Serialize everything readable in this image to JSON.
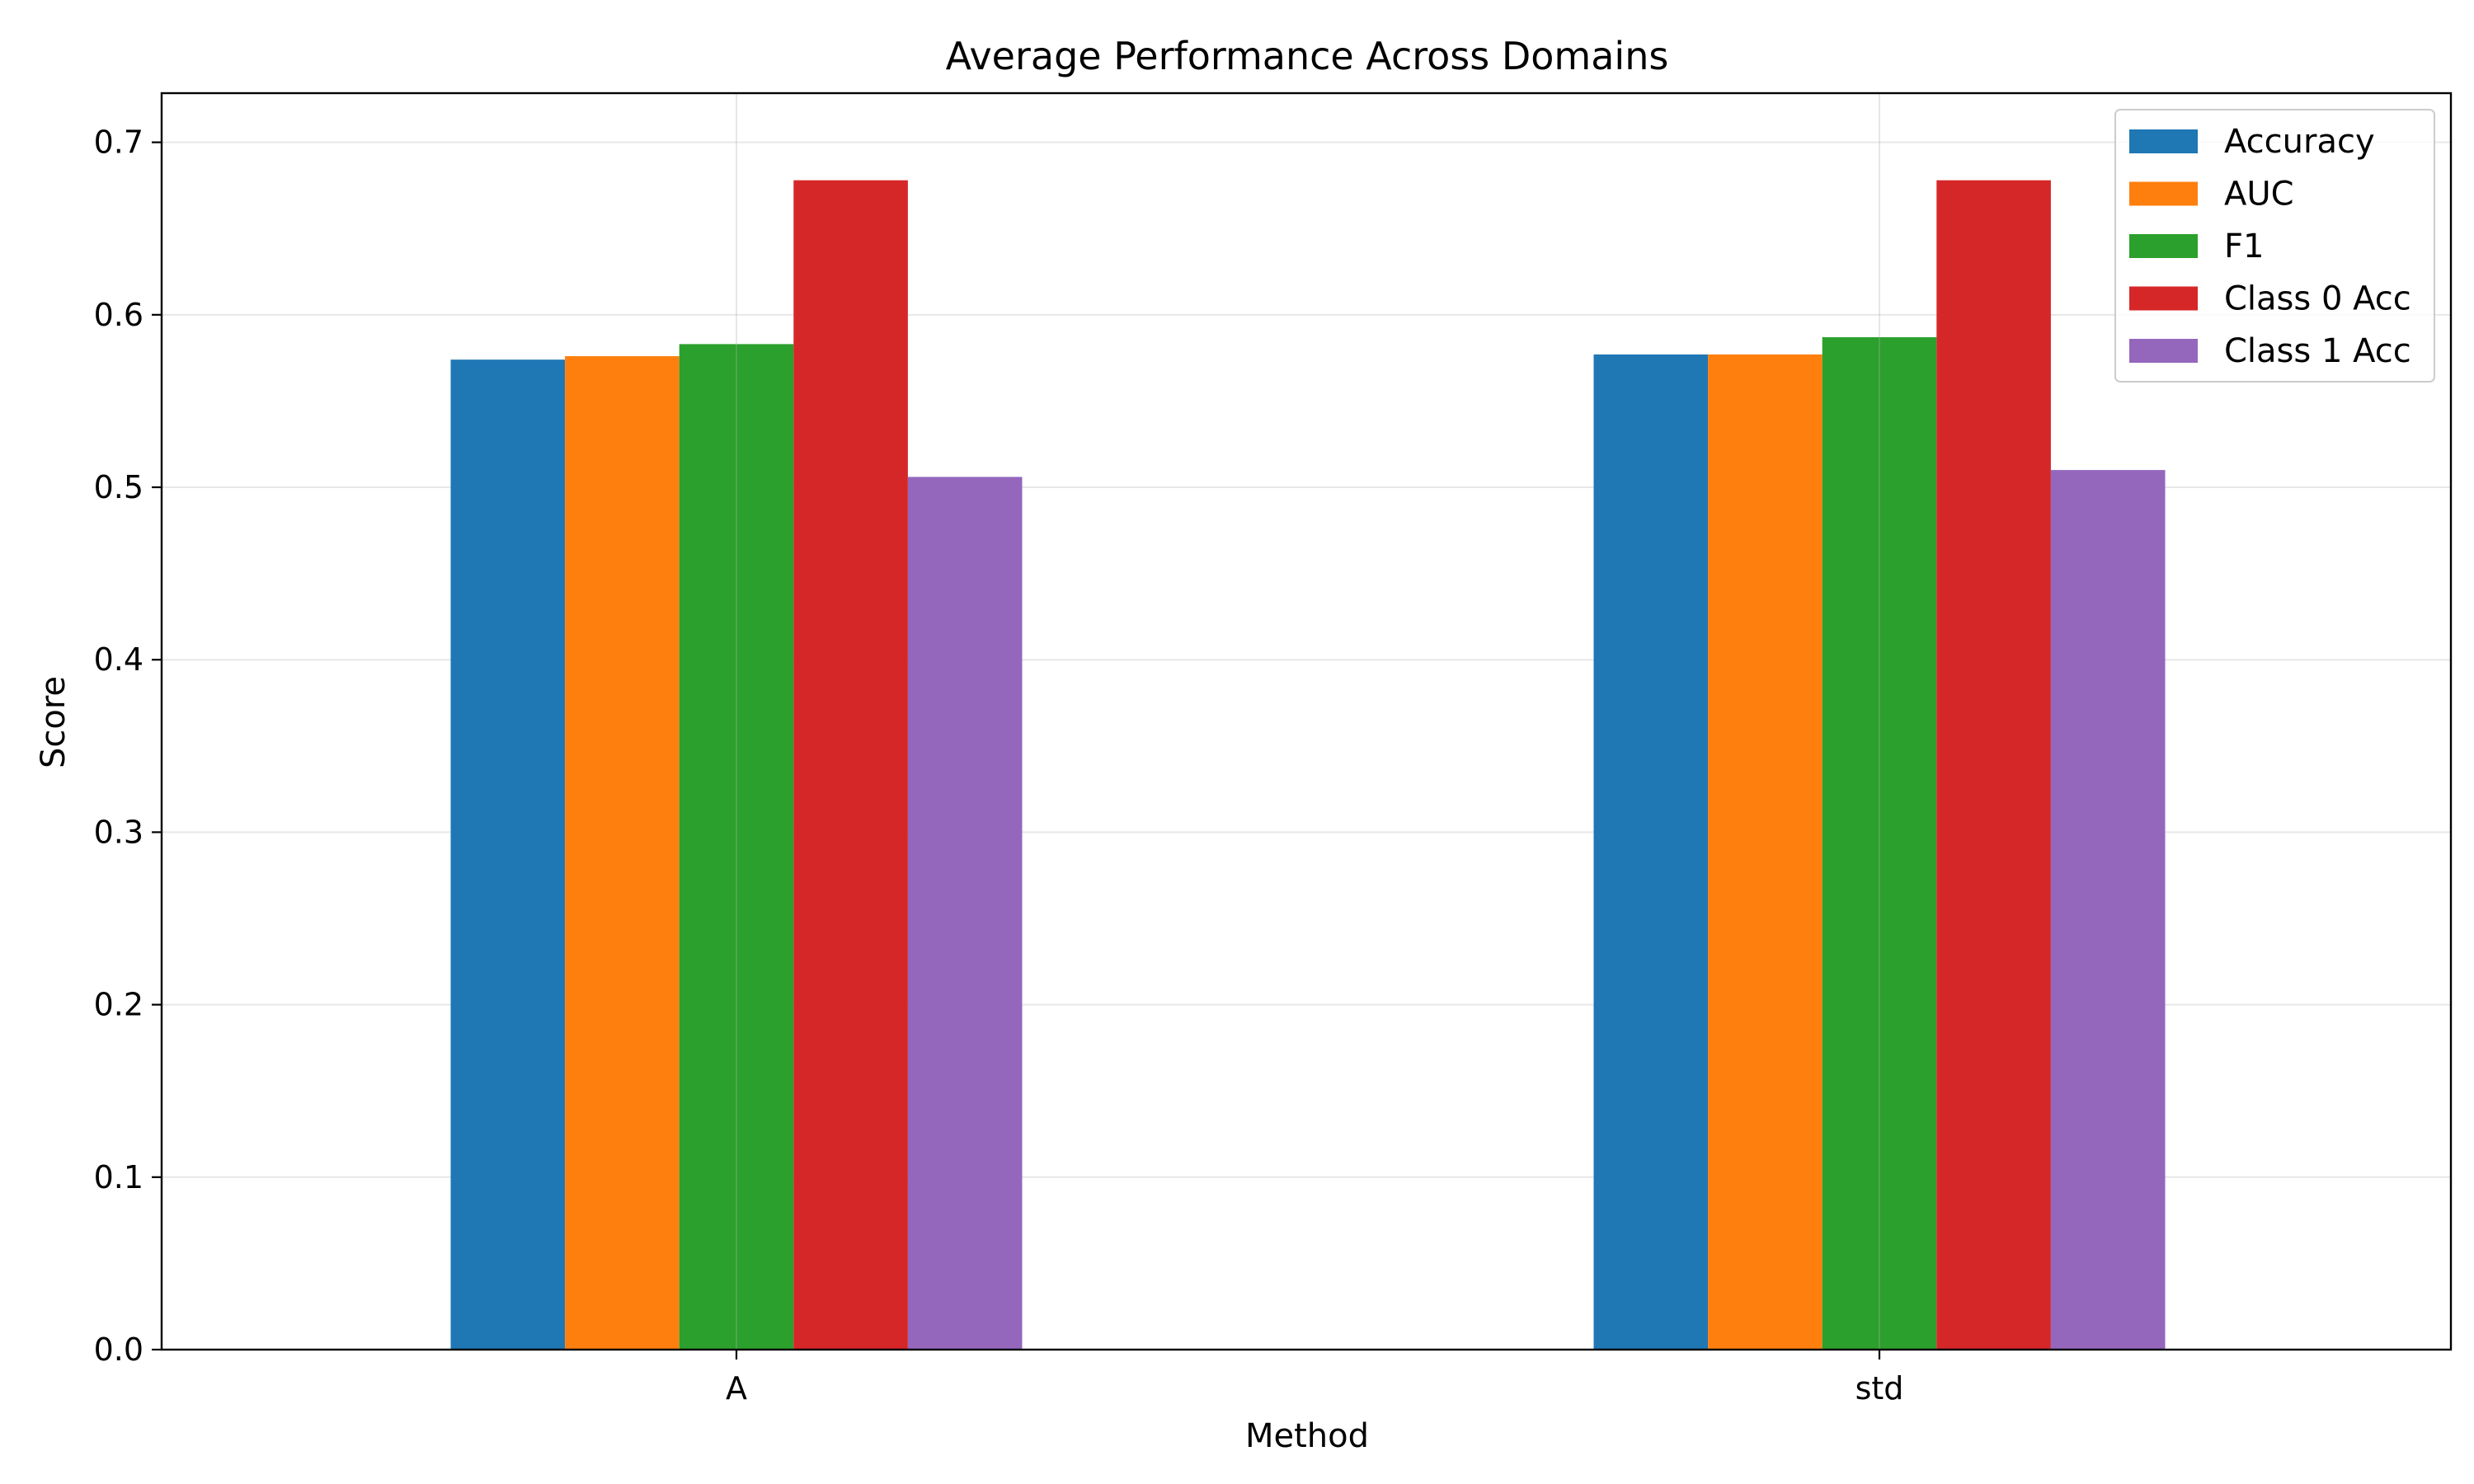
{
  "chart_data": {
    "type": "bar",
    "title": "Average Performance Across Domains",
    "xlabel": "Method",
    "ylabel": "Score",
    "categories": [
      "A",
      "std"
    ],
    "series": [
      {
        "name": "Accuracy",
        "values": [
          0.574,
          0.577
        ],
        "color": "#1f77b4"
      },
      {
        "name": "AUC",
        "values": [
          0.576,
          0.577
        ],
        "color": "#ff7f0e"
      },
      {
        "name": "F1",
        "values": [
          0.583,
          0.587
        ],
        "color": "#2ca02c"
      },
      {
        "name": "Class 0 Acc",
        "values": [
          0.678,
          0.678
        ],
        "color": "#d62728"
      },
      {
        "name": "Class 1 Acc",
        "values": [
          0.506,
          0.51
        ],
        "color": "#9467bd"
      }
    ],
    "ylim": [
      0,
      0.7
    ],
    "yticks": [
      "0.0",
      "0.1",
      "0.2",
      "0.3",
      "0.4",
      "0.5",
      "0.6",
      "0.7"
    ],
    "grid": true,
    "legend_position": "top-right"
  }
}
